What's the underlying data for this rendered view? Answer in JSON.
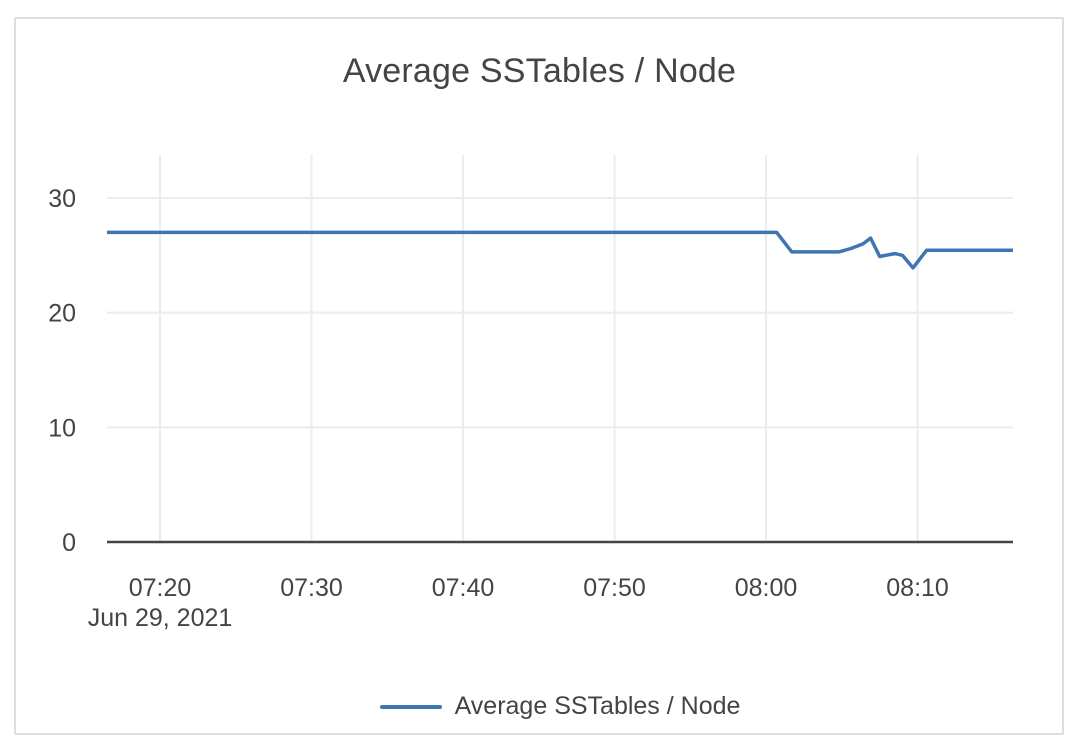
{
  "page": {
    "background": "#ffffff",
    "card_border_color": "#dcdcdc"
  },
  "chart_data": {
    "type": "line",
    "title": "Average SSTables / Node",
    "xlabel": "",
    "ylabel": "",
    "grid": true,
    "colors": {
      "series_line": "#3f76b2",
      "grid_line": "#ececec",
      "axis_line": "#444444",
      "text": "#444444"
    },
    "x_axis": {
      "kind": "time",
      "date_label": "Jun 29, 2021",
      "range_minutes_after_0700": [
        16.5,
        76.3
      ],
      "ticks": [
        {
          "t": 20,
          "label": "07:20"
        },
        {
          "t": 30,
          "label": "07:30"
        },
        {
          "t": 40,
          "label": "07:40"
        },
        {
          "t": 50,
          "label": "07:50"
        },
        {
          "t": 60,
          "label": "08:00"
        },
        {
          "t": 70,
          "label": "08:10"
        }
      ]
    },
    "y_axis": {
      "range": [
        0,
        33.75
      ],
      "ticks": [
        {
          "v": 0,
          "label": "0"
        },
        {
          "v": 10,
          "label": "10"
        },
        {
          "v": 20,
          "label": "20"
        },
        {
          "v": 30,
          "label": "30"
        }
      ]
    },
    "legend": {
      "position": "bottom-center",
      "entries": [
        {
          "label": "Average SSTables / Node",
          "color": "#3f76b2"
        }
      ]
    },
    "series": [
      {
        "name": "Average SSTables / Node",
        "color": "#3f76b2",
        "points": [
          {
            "t": 16.5,
            "v": 27.0
          },
          {
            "t": 60.7,
            "v": 27.0
          },
          {
            "t": 61.7,
            "v": 25.3
          },
          {
            "t": 64.8,
            "v": 25.3
          },
          {
            "t": 65.6,
            "v": 25.6
          },
          {
            "t": 66.4,
            "v": 26.0
          },
          {
            "t": 66.9,
            "v": 26.5
          },
          {
            "t": 67.5,
            "v": 24.9
          },
          {
            "t": 68.5,
            "v": 25.15
          },
          {
            "t": 69.0,
            "v": 25.0
          },
          {
            "t": 69.7,
            "v": 23.9
          },
          {
            "t": 70.6,
            "v": 25.45
          },
          {
            "t": 76.3,
            "v": 25.45
          }
        ]
      }
    ]
  }
}
